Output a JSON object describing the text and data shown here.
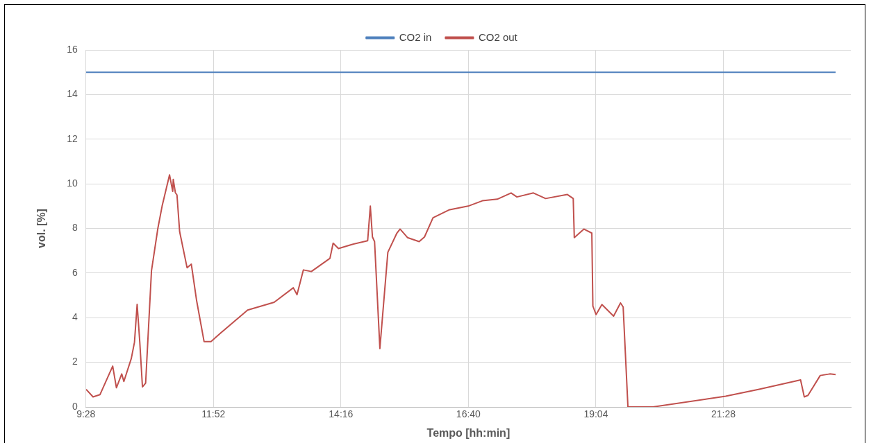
{
  "chart_data": {
    "type": "line",
    "xlabel": "Tempo [hh:min]",
    "ylabel": "vol. [%]",
    "xlim": [
      9.4667,
      23.8667
    ],
    "xticks": [
      {
        "value": 9.4667,
        "label": "9:28"
      },
      {
        "value": 11.8667,
        "label": "11:52"
      },
      {
        "value": 14.2667,
        "label": "14:16"
      },
      {
        "value": 16.6667,
        "label": "16:40"
      },
      {
        "value": 19.0667,
        "label": "19:04"
      },
      {
        "value": 21.4667,
        "label": "21:28"
      }
    ],
    "ylim": [
      0,
      16
    ],
    "yticks": [
      0,
      2,
      4,
      6,
      8,
      10,
      12,
      14,
      16
    ],
    "grid": true,
    "legend": "top",
    "marker": "none",
    "line_style": "solid",
    "series": [
      {
        "name": "CO2 in",
        "color": "#4f81bd",
        "x": [
          9.47,
          23.58
        ],
        "values": [
          15,
          15
        ]
      },
      {
        "name": "CO2 out",
        "color": "#c0504d",
        "x": [
          9.47,
          9.6,
          9.73,
          9.97,
          10.04,
          10.14,
          10.18,
          10.32,
          10.38,
          10.43,
          10.48,
          10.53,
          10.59,
          10.7,
          10.82,
          10.9,
          11.04,
          11.1,
          11.11,
          11.15,
          11.18,
          11.23,
          11.37,
          11.45,
          11.55,
          11.69,
          11.82,
          12.0,
          12.51,
          13.01,
          13.37,
          13.44,
          13.56,
          13.71,
          14.06,
          14.12,
          14.22,
          14.47,
          14.77,
          14.82,
          14.86,
          14.9,
          15.0,
          15.15,
          15.32,
          15.38,
          15.52,
          15.74,
          15.84,
          16.0,
          16.3,
          16.66,
          16.93,
          17.21,
          17.47,
          17.58,
          17.89,
          18.12,
          18.53,
          18.64,
          18.66,
          18.84,
          18.99,
          19.01,
          19.07,
          19.18,
          19.4,
          19.53,
          19.58,
          19.67,
          20.14,
          21.51,
          22.14,
          22.92,
          22.99,
          23.06,
          23.29,
          23.47,
          23.58
        ],
        "values": [
          0.79,
          0.45,
          0.55,
          1.83,
          0.86,
          1.48,
          1.14,
          2.17,
          2.9,
          4.6,
          2.9,
          0.9,
          1.07,
          6.1,
          8.0,
          9.0,
          10.4,
          9.66,
          10.2,
          9.6,
          9.5,
          7.86,
          6.24,
          6.4,
          4.76,
          2.93,
          2.93,
          3.31,
          4.34,
          4.69,
          5.34,
          5.03,
          6.14,
          6.07,
          6.66,
          7.34,
          7.1,
          7.28,
          7.45,
          9.0,
          7.62,
          7.41,
          2.62,
          6.93,
          7.79,
          7.97,
          7.59,
          7.41,
          7.62,
          8.48,
          8.83,
          9.0,
          9.24,
          9.31,
          9.59,
          9.41,
          9.59,
          9.34,
          9.52,
          9.34,
          7.59,
          7.97,
          7.79,
          4.52,
          4.14,
          4.59,
          4.07,
          4.66,
          4.48,
          0,
          0,
          0.48,
          0.79,
          1.21,
          0.45,
          0.52,
          1.41,
          1.48,
          1.45
        ]
      }
    ]
  }
}
